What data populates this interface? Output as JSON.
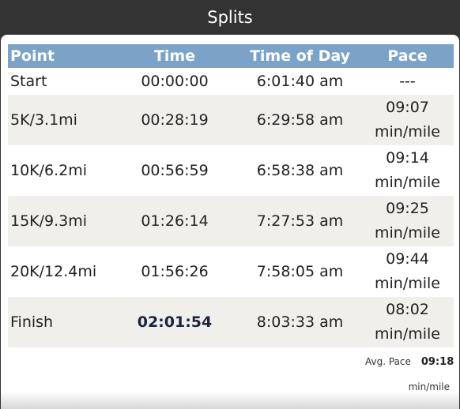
{
  "header": {
    "title": "Splits"
  },
  "table": {
    "columns": [
      "Point",
      "Time",
      "Time of Day",
      "Pace"
    ],
    "rows": [
      {
        "point": "Start",
        "time": "00:00:00",
        "time_of_day": "6:01:40 am",
        "pace": "---",
        "pace_unit": ""
      },
      {
        "point": "5K/3.1mi",
        "time": "00:28:19",
        "time_of_day": "6:29:58 am",
        "pace": "09:07",
        "pace_unit": "min/mile"
      },
      {
        "point": "10K/6.2mi",
        "time": "00:56:59",
        "time_of_day": "6:58:38 am",
        "pace": "09:14",
        "pace_unit": "min/mile"
      },
      {
        "point": "15K/9.3mi",
        "time": "01:26:14",
        "time_of_day": "7:27:53 am",
        "pace": "09:25",
        "pace_unit": "min/mile"
      },
      {
        "point": "20K/12.4mi",
        "time": "01:56:26",
        "time_of_day": "7:58:05 am",
        "pace": "09:44",
        "pace_unit": "min/mile"
      },
      {
        "point": "Finish",
        "time": "02:01:54",
        "time_of_day": "8:03:33 am",
        "pace": "08:02",
        "pace_unit": "min/mile"
      }
    ]
  },
  "summary": {
    "avg_pace_label": "Avg. Pace",
    "avg_pace_value": "09:18",
    "avg_pace_unit": "min/mile"
  },
  "colors": {
    "header_bg": "#333333",
    "table_header_bg": "#7ba3c8",
    "row_shade": "#f0efeb"
  }
}
